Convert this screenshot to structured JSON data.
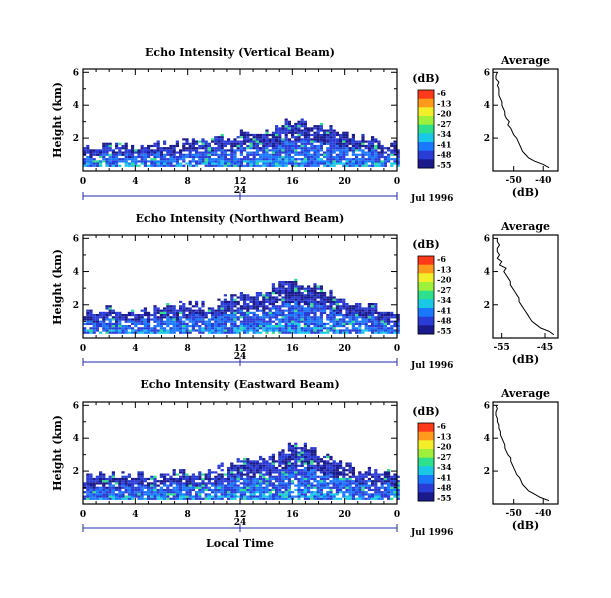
{
  "figure": {
    "xlabel": "Local Time",
    "date_label": "Jul 1996",
    "colorbar": {
      "unit_label": "(dB)",
      "ticks": [
        "-6",
        "-13",
        "-20",
        "-27",
        "-34",
        "-41",
        "-48",
        "-55"
      ],
      "colors": [
        "#ff3a1a",
        "#ff9a1a",
        "#f2ef2a",
        "#9ef03a",
        "#2ee08c",
        "#19c8e6",
        "#1a78ff",
        "#2a3cd6",
        "#1b1a8c"
      ]
    },
    "x_ticks": [
      "0",
      "4",
      "8",
      "12",
      "16",
      "20",
      "0"
    ],
    "date_tick": "24",
    "y_ticks": [
      "6",
      "4",
      "2"
    ]
  },
  "chart_data": [
    {
      "type": "heatmap",
      "title": "Echo Intensity (Vertical Beam)",
      "xlabel": "Local Time",
      "ylabel": "Height (km)",
      "xlim": [
        0,
        24
      ],
      "ylim": [
        0,
        6.2
      ],
      "unit": "dB",
      "envelope": {
        "hours": [
          0,
          2,
          4,
          6,
          8,
          10,
          11,
          12,
          13,
          14,
          15,
          16,
          17,
          18,
          19,
          20,
          21,
          22,
          23,
          24
        ],
        "top_km": [
          1.4,
          1.5,
          1.4,
          1.6,
          1.8,
          1.8,
          2.0,
          2.2,
          2.3,
          2.4,
          2.8,
          3.0,
          2.9,
          2.8,
          2.4,
          2.2,
          2.0,
          1.8,
          1.6,
          1.6
        ]
      },
      "profile": {
        "title": "Average",
        "xlabel": "(dB)",
        "ylabel": "Height (km)",
        "x_ticks": [
          "-50",
          "-40"
        ],
        "xlim": [
          -57,
          -35
        ],
        "height_km": [
          0.2,
          0.4,
          0.6,
          0.8,
          1.0,
          1.2,
          1.4,
          1.6,
          1.8,
          2.0,
          2.2,
          2.4,
          2.6,
          2.8,
          3.0,
          3.2,
          3.4,
          3.6,
          3.8,
          4.0,
          4.2,
          4.4,
          4.6,
          4.8,
          5.0,
          5.2,
          5.4,
          5.6,
          5.8,
          6.0
        ],
        "db": [
          -38,
          -40,
          -43,
          -45,
          -46,
          -47,
          -47.5,
          -48,
          -48.5,
          -49,
          -50,
          -50.5,
          -51,
          -52,
          -51.5,
          -52.5,
          -53,
          -53,
          -53.5,
          -54,
          -54,
          -54.5,
          -55,
          -55,
          -55,
          -55.5,
          -55,
          -56,
          -56,
          -55.5
        ]
      }
    },
    {
      "type": "heatmap",
      "title": "Echo Intensity (Northward Beam)",
      "xlabel": "Local Time",
      "ylabel": "Height (km)",
      "xlim": [
        0,
        24
      ],
      "ylim": [
        0,
        6.2
      ],
      "unit": "dB",
      "envelope": {
        "hours": [
          0,
          2,
          4,
          6,
          8,
          10,
          11,
          12,
          13,
          14,
          15,
          16,
          17,
          18,
          19,
          20,
          21,
          22,
          23,
          24
        ],
        "top_km": [
          1.4,
          1.7,
          1.5,
          1.8,
          2.0,
          2.0,
          2.4,
          2.7,
          2.6,
          2.8,
          3.2,
          3.4,
          3.1,
          2.9,
          2.6,
          2.3,
          2.0,
          1.9,
          1.6,
          1.5
        ]
      },
      "profile": {
        "title": "Average",
        "xlabel": "(dB)",
        "ylabel": "Height (km)",
        "x_ticks": [
          "-55",
          "-45"
        ],
        "xlim": [
          -57,
          -42
        ],
        "height_km": [
          0.2,
          0.4,
          0.6,
          0.8,
          1.0,
          1.2,
          1.4,
          1.6,
          1.8,
          2.0,
          2.2,
          2.4,
          2.6,
          2.8,
          3.0,
          3.2,
          3.4,
          3.6,
          3.8,
          4.0,
          4.2,
          4.4,
          4.6,
          4.8,
          5.0,
          5.2,
          5.4,
          5.6,
          5.8,
          6.0
        ],
        "db": [
          -43,
          -44,
          -46,
          -47,
          -48,
          -48.5,
          -49,
          -49.5,
          -50,
          -50.5,
          -51,
          -51,
          -51.5,
          -52,
          -52.5,
          -53,
          -53,
          -53.5,
          -54,
          -54.5,
          -54,
          -55.5,
          -55,
          -56,
          -55.5,
          -56,
          -56,
          -55.5,
          -56,
          -56
        ]
      }
    },
    {
      "type": "heatmap",
      "title": "Echo Intensity (Eastward Beam)",
      "xlabel": "Local Time",
      "ylabel": "Height (km)",
      "xlim": [
        0,
        24
      ],
      "ylim": [
        0,
        6.2
      ],
      "unit": "dB",
      "envelope": {
        "hours": [
          0,
          2,
          4,
          6,
          8,
          10,
          11,
          12,
          13,
          14,
          15,
          16,
          17,
          18,
          19,
          20,
          21,
          22,
          23,
          24
        ],
        "top_km": [
          1.5,
          1.8,
          1.6,
          1.9,
          1.8,
          2.0,
          2.4,
          2.6,
          2.5,
          2.7,
          3.0,
          3.6,
          3.4,
          3.0,
          2.7,
          2.4,
          2.1,
          2.0,
          1.8,
          1.6
        ]
      },
      "profile": {
        "title": "Average",
        "xlabel": "(dB)",
        "ylabel": "Height (km)",
        "x_ticks": [
          "-50",
          "-40"
        ],
        "xlim": [
          -57,
          -35
        ],
        "height_km": [
          0.2,
          0.4,
          0.6,
          0.8,
          1.0,
          1.2,
          1.4,
          1.6,
          1.8,
          2.0,
          2.2,
          2.4,
          2.6,
          2.8,
          3.0,
          3.2,
          3.4,
          3.6,
          3.8,
          4.0,
          4.2,
          4.4,
          4.6,
          4.8,
          5.0,
          5.2,
          5.4,
          5.6,
          5.8,
          6.0
        ],
        "db": [
          -38,
          -41,
          -43,
          -45,
          -46,
          -47,
          -47.5,
          -48,
          -49,
          -49.5,
          -50,
          -50.5,
          -51,
          -51,
          -52,
          -52.5,
          -53,
          -53,
          -53.5,
          -54,
          -54.5,
          -54.5,
          -55,
          -55,
          -55.5,
          -55.5,
          -56,
          -56,
          -55.5,
          -56
        ]
      }
    }
  ]
}
